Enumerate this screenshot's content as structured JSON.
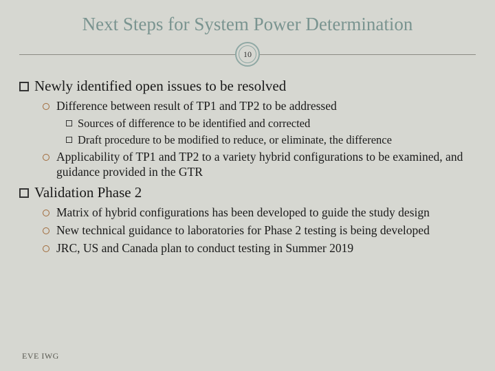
{
  "title": "Next Steps for System Power Determination",
  "pageNumber": "10",
  "footer": "EVE IWG",
  "sections": [
    {
      "heading": "Newly identified open issues to be resolved",
      "items": [
        {
          "text": "Difference between result of TP1 and TP2 to be addressed",
          "sub": [
            "Sources of difference to be identified and corrected",
            "Draft procedure to be modified to reduce, or eliminate, the difference"
          ]
        },
        {
          "text": "Applicability of TP1 and TP2 to a variety hybrid configurations to be examined, and guidance provided in the GTR",
          "sub": []
        }
      ]
    },
    {
      "heading": "Validation Phase 2",
      "items": [
        {
          "text": "Matrix of hybrid configurations has been developed to guide the study design",
          "sub": []
        },
        {
          "text": "New technical guidance to laboratories for Phase 2 testing is being developed",
          "sub": []
        },
        {
          "text": "JRC, US and Canada plan to conduct testing in Summer 2019",
          "sub": []
        }
      ]
    }
  ]
}
